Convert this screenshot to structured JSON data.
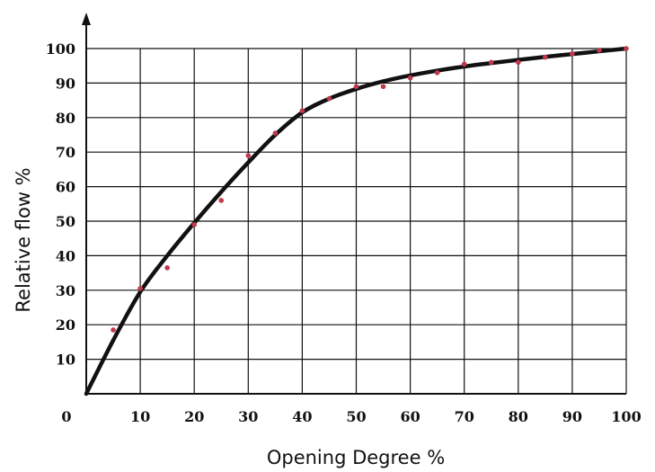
{
  "chart_data": {
    "type": "scatter",
    "title": "",
    "xlabel": "Opening Degree %",
    "ylabel": "Relative flow %",
    "xlim": [
      0,
      100
    ],
    "ylim": [
      0,
      100
    ],
    "x_ticks": [
      "0",
      "10",
      "20",
      "30",
      "40",
      "50",
      "60",
      "70",
      "80",
      "90",
      "100"
    ],
    "y_ticks": [
      "10",
      "20",
      "30",
      "40",
      "50",
      "60",
      "70",
      "80",
      "90",
      "100"
    ],
    "grid": true,
    "legend": "none",
    "colors": {
      "curve": "#111111",
      "points": "#c0394b"
    },
    "series": [
      {
        "kind": "line",
        "x": [
          0,
          5,
          10,
          15,
          20,
          25,
          30,
          35,
          40,
          45,
          50,
          55,
          60,
          65,
          70,
          75,
          80,
          85,
          90,
          95,
          100
        ],
        "y": [
          0,
          15.5,
          29.5,
          40,
          49.5,
          58.5,
          67,
          75,
          81.5,
          85.5,
          88.3,
          90.5,
          92.2,
          93.6,
          94.8,
          95.8,
          96.7,
          97.6,
          98.4,
          99.2,
          100
        ]
      },
      {
        "kind": "points",
        "x": [
          5,
          10,
          15,
          20,
          25,
          30,
          35,
          40,
          45,
          50,
          55,
          60,
          65,
          70,
          75,
          80,
          85,
          90,
          95,
          100
        ],
        "y": [
          18.5,
          30.5,
          36.5,
          49,
          56,
          69,
          75.5,
          82,
          85.5,
          89,
          89,
          91.5,
          93,
          95.5,
          96,
          96,
          97.5,
          98.5,
          99.5,
          100
        ]
      }
    ]
  }
}
